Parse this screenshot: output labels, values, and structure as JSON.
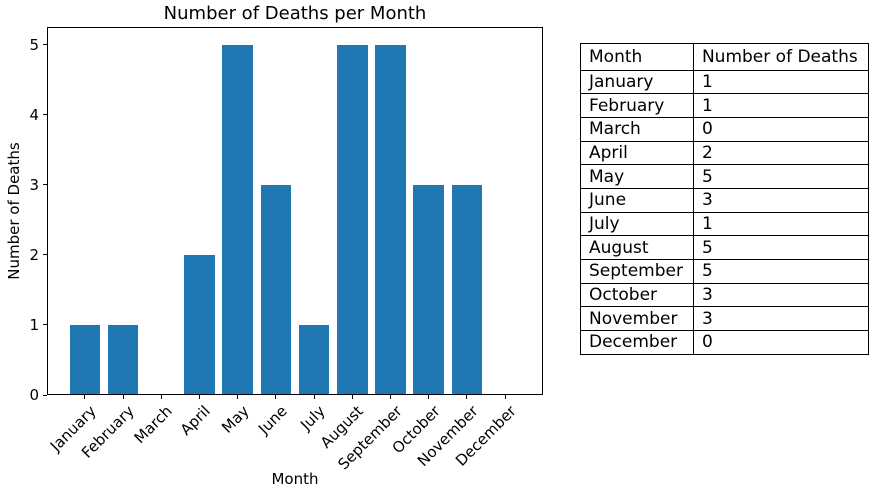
{
  "chart_data": {
    "type": "bar",
    "title": "Number of Deaths per Month",
    "xlabel": "Month",
    "ylabel": "Number of Deaths",
    "categories": [
      "January",
      "February",
      "March",
      "April",
      "May",
      "June",
      "July",
      "August",
      "September",
      "October",
      "November",
      "December"
    ],
    "values": [
      1,
      1,
      0,
      2,
      5,
      3,
      1,
      5,
      5,
      3,
      3,
      0
    ],
    "yticks": [
      0,
      1,
      2,
      3,
      4,
      5
    ],
    "ylim": [
      0,
      5.25
    ],
    "bar_color": "#1f77b4",
    "grid": false,
    "legend_position": "none",
    "x_tick_rotation": 45
  },
  "table": {
    "headers": [
      "Month",
      "Number of Deaths"
    ],
    "rows": [
      [
        "January",
        "1"
      ],
      [
        "February",
        "1"
      ],
      [
        "March",
        "0"
      ],
      [
        "April",
        "2"
      ],
      [
        "May",
        "5"
      ],
      [
        "June",
        "3"
      ],
      [
        "July",
        "1"
      ],
      [
        "August",
        "5"
      ],
      [
        "September",
        "5"
      ],
      [
        "October",
        "3"
      ],
      [
        "November",
        "3"
      ],
      [
        "December",
        "0"
      ]
    ]
  }
}
